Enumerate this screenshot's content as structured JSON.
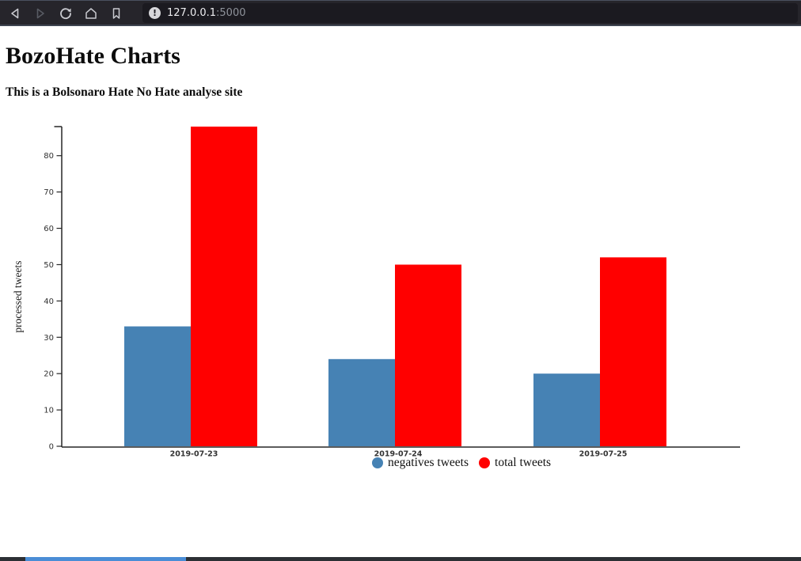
{
  "browser": {
    "url": {
      "host": "127.0.0.1",
      "port": ":5000"
    },
    "icons": [
      "back-icon",
      "forward-icon",
      "reload-icon",
      "home-icon",
      "bookmark-icon",
      "site-info-icon"
    ]
  },
  "page": {
    "title": "BozoHate Charts",
    "subtitle": "This is a Bolsonaro Hate No Hate analyse site"
  },
  "chart_data": {
    "type": "bar",
    "title": "",
    "xlabel": "",
    "ylabel": "processed tweets",
    "categories": [
      "2019-07-23",
      "2019-07-24",
      "2019-07-25"
    ],
    "series": [
      {
        "name": "negatives tweets",
        "color": "#4682b4",
        "values": [
          33,
          24,
          20
        ]
      },
      {
        "name": "total tweets",
        "color": "#ff0000",
        "values": [
          88,
          50,
          52
        ]
      }
    ],
    "ylim": [
      0,
      88
    ],
    "yticks": [
      0,
      10,
      20,
      30,
      40,
      50,
      60,
      70,
      80
    ],
    "grid": false,
    "legend_position": "bottom"
  },
  "window_chrome": {
    "toolbar_bg": "#26252b",
    "urlbar_bg": "#1b1a20",
    "scrollbar_track": "#2c3034",
    "scrollbar_thumb": "#4a8dd6"
  }
}
